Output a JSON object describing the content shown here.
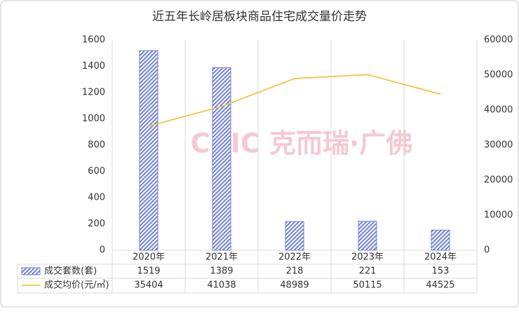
{
  "chart_data": {
    "type": "bar-line",
    "title": "近五年长岭居板块商品住宅成交量价走势",
    "watermark": "CRIC 克而瑞·广佛",
    "categories": [
      "2020年",
      "2021年",
      "2022年",
      "2023年",
      "2024年"
    ],
    "series": [
      {
        "name": "成交套数(套)",
        "type": "bar",
        "color": "#6f80d8",
        "values": [
          1519,
          1389,
          218,
          221,
          153
        ]
      },
      {
        "name": "成交均价(元/㎡)",
        "type": "line",
        "axis": "y2",
        "color": "#f2c443",
        "values": [
          35404,
          41038,
          48989,
          50115,
          44525
        ]
      }
    ],
    "ylim": [
      0,
      1600
    ],
    "yticks": [
      0,
      200,
      400,
      600,
      800,
      1000,
      1200,
      1400,
      1600
    ],
    "y2lim": [
      0,
      60000
    ],
    "y2ticks": [
      0,
      10000,
      20000,
      30000,
      40000,
      50000,
      60000
    ],
    "data_table": true
  }
}
